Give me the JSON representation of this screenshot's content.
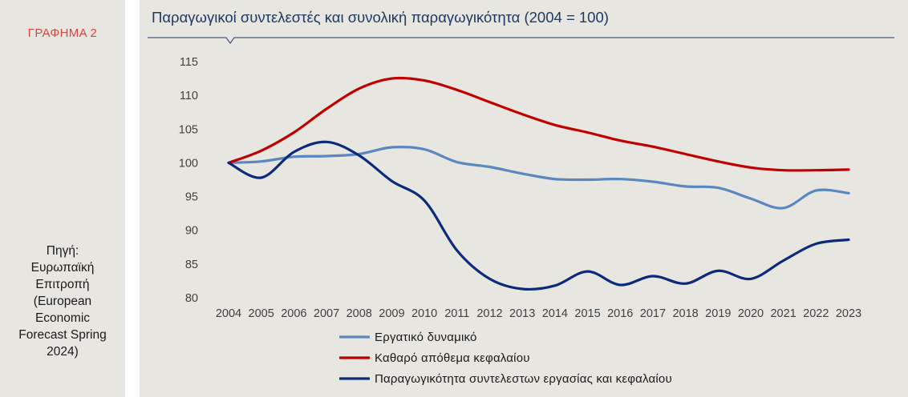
{
  "side": {
    "figure_label": "ΓΡΑΦΗΜΑ 2",
    "source": "Πηγή:\nΕυρωπαϊκή\nΕπιτροπή\n(European\nEconomic\nForecast Spring\n2024)"
  },
  "colors": {
    "labor": "#5a87c0",
    "capital": "#c00000",
    "tfp": "#0b2a7a",
    "title": "#1f3864",
    "figure_label": "#d2473f"
  },
  "chart_data": {
    "type": "line",
    "title": "Παραγωγικοί συντελεστές και συνολική παραγωγικότητα (2004 = 100)",
    "xlabel": "",
    "ylabel": "",
    "x": [
      "2004",
      "2005",
      "2006",
      "2007",
      "2008",
      "2009",
      "2010",
      "2011",
      "2012",
      "2013",
      "2014",
      "2015",
      "2016",
      "2017",
      "2018",
      "2019",
      "2020",
      "2021",
      "2022",
      "2023"
    ],
    "ylim": [
      80,
      115
    ],
    "yticks": [
      "115",
      "110",
      "105",
      "100",
      "95",
      "90",
      "85",
      "80"
    ],
    "grid": false,
    "legend_position": "bottom",
    "series": [
      {
        "name": "Εργατικό δυναμικό",
        "color": "#5a87c0",
        "values": [
          100.0,
          100.2,
          100.9,
          101.0,
          101.3,
          102.3,
          102.0,
          100.1,
          99.4,
          98.4,
          97.6,
          97.5,
          97.6,
          97.2,
          96.5,
          96.3,
          94.7,
          93.3,
          95.9,
          95.5
        ]
      },
      {
        "name": "Καθαρό απόθεμα κεφαλαίου",
        "color": "#c00000",
        "values": [
          100.0,
          101.8,
          104.5,
          108.0,
          111.0,
          112.5,
          112.2,
          110.8,
          109.0,
          107.2,
          105.6,
          104.5,
          103.3,
          102.4,
          101.3,
          100.2,
          99.3,
          98.9,
          98.9,
          99.0
        ]
      },
      {
        "name": "Παραγωγικότητα συντελεστων εργασίας και κεφαλαίου",
        "color": "#0b2a7a",
        "values": [
          100.0,
          97.8,
          101.6,
          103.1,
          101.1,
          97.3,
          94.4,
          87.0,
          82.8,
          81.3,
          81.8,
          83.9,
          81.9,
          83.2,
          82.1,
          84.0,
          82.8,
          85.5,
          88.0,
          88.6
        ]
      }
    ]
  }
}
